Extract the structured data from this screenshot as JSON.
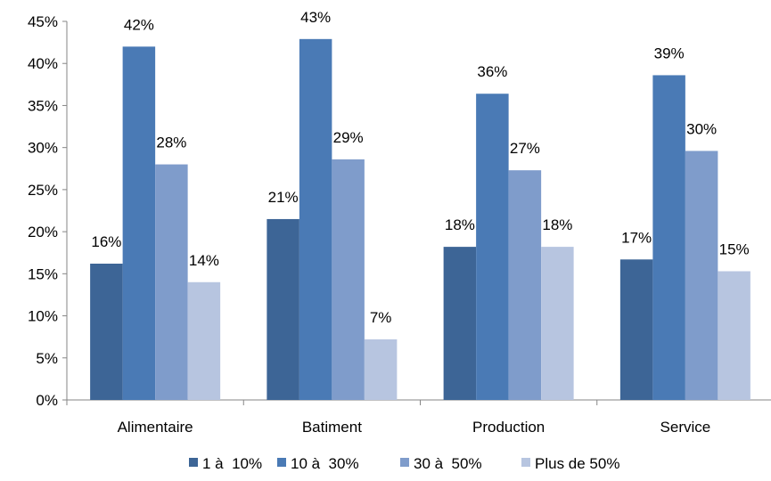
{
  "chart_data": {
    "type": "bar",
    "categories": [
      "Alimentaire",
      "Batiment",
      "Production",
      "Service"
    ],
    "series": [
      {
        "name": "1 à  10%",
        "values": [
          16.2,
          21.5,
          18.2,
          16.7
        ],
        "labels": [
          "16%",
          "21%",
          "18%",
          "17%"
        ],
        "color": "#3d6596"
      },
      {
        "name": "10 à  30%",
        "values": [
          42.0,
          42.9,
          36.4,
          38.6
        ],
        "labels": [
          "42%",
          "43%",
          "36%",
          "39%"
        ],
        "color": "#4a7ab5"
      },
      {
        "name": "30 à  50%",
        "values": [
          28.0,
          28.6,
          27.3,
          29.6
        ],
        "labels": [
          "28%",
          "29%",
          "27%",
          "30%"
        ],
        "color": "#7f9ccb"
      },
      {
        "name": "Plus de 50%",
        "values": [
          14.0,
          7.2,
          18.2,
          15.3
        ],
        "labels": [
          "14%",
          "7%",
          "18%",
          "15%"
        ],
        "color": "#b7c5e0"
      }
    ],
    "ylim": [
      0,
      45
    ],
    "yticks": [
      "0%",
      "5%",
      "10%",
      "15%",
      "20%",
      "25%",
      "30%",
      "35%",
      "40%",
      "45%"
    ],
    "title": "",
    "xlabel": "",
    "ylabel": "",
    "grid": false,
    "legend_position": "bottom"
  }
}
